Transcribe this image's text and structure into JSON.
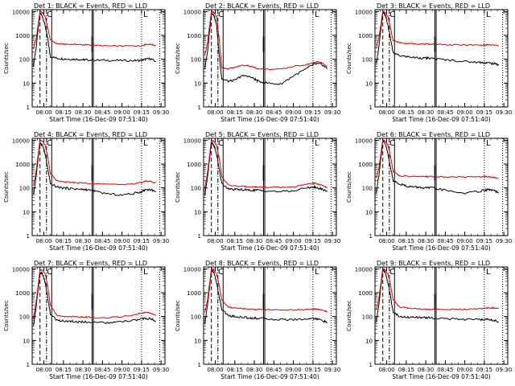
{
  "figure": {
    "colors": {
      "events": "#000000",
      "lld": "#e00000",
      "axis": "#000000",
      "background": "#ffffff"
    }
  },
  "chart_data": [
    {
      "type": "line",
      "title": "Det 1: BLACK = Events, RED = LLD",
      "xlabel": "Start Time (16-Dec-09 07:51:40)",
      "ylabel": "Counts/sec",
      "x_tick_labels": [
        "08:00",
        "08:15",
        "08:30",
        "08:45",
        "09:00",
        "09:15",
        "09:30"
      ],
      "y_tick_labels": [
        "1",
        "10",
        "100",
        "1000",
        "10000"
      ],
      "y_scale": "log",
      "ylim": [
        1,
        12000
      ],
      "corner_labels": [
        "C",
        "L"
      ],
      "x": [
        "07:52",
        "07:54",
        "07:57",
        "07:59",
        "08:01",
        "08:03",
        "08:05",
        "08:10",
        "08:15",
        "08:20",
        "08:25",
        "08:30",
        "08:33",
        "08:40",
        "08:50",
        "09:00",
        "09:10",
        "09:15",
        "09:18",
        "09:22",
        "09:26"
      ],
      "series": [
        {
          "name": "Events",
          "values": [
            55,
            300,
            9000,
            6000,
            2500,
            700,
            130,
            110,
            105,
            100,
            100,
            95,
            95,
            90,
            90,
            88,
            88,
            90,
            100,
            105,
            80
          ]
        },
        {
          "name": "LLD",
          "values": [
            280,
            700,
            10000,
            9000,
            6000,
            2000,
            650,
            450,
            430,
            420,
            420,
            400,
            400,
            380,
            360,
            360,
            360,
            370,
            420,
            420,
            380
          ]
        }
      ]
    },
    {
      "type": "line",
      "title": "Det 2: BLACK = Events, RED = LLD",
      "xlabel": "Start Time (16-Dec-09 07:51:40)",
      "ylabel": "Counts/sec",
      "x_tick_labels": [
        "08:00",
        "08:15",
        "08:30",
        "08:45",
        "09:00",
        "09:15",
        "09:30"
      ],
      "y_tick_labels": [
        "1",
        "10",
        "100",
        "1000",
        "10000"
      ],
      "y_scale": "log",
      "ylim": [
        1,
        12000
      ],
      "corner_labels": [
        "C",
        "L"
      ],
      "x": [
        "07:52",
        "07:54",
        "07:57",
        "07:59",
        "08:01",
        "08:03",
        "08:05",
        "08:10",
        "08:15",
        "08:20",
        "08:25",
        "08:30",
        "08:33",
        "08:40",
        "08:50",
        "09:00",
        "09:10",
        "09:15",
        "09:18",
        "09:22",
        "09:26"
      ],
      "series": [
        {
          "name": "Events",
          "values": [
            40,
            200,
            9000,
            7000,
            2500,
            150,
            15,
            12,
            13,
            20,
            20,
            15,
            12,
            10,
            9,
            20,
            40,
            60,
            65,
            60,
            40
          ]
        },
        {
          "name": "LLD",
          "values": [
            150,
            500,
            10000,
            9000,
            6000,
            700,
            45,
            40,
            45,
            55,
            55,
            45,
            40,
            38,
            38,
            50,
            60,
            70,
            80,
            70,
            50
          ]
        }
      ]
    },
    {
      "type": "line",
      "title": "Det 3: BLACK = Events, RED = LLD",
      "xlabel": "Start Time (16-Dec-09 07:51:40)",
      "ylabel": "Counts/sec",
      "x_tick_labels": [
        "08:00",
        "08:15",
        "08:30",
        "08:45",
        "09:00",
        "09:15",
        "09:30"
      ],
      "y_tick_labels": [
        "1",
        "10",
        "100",
        "1000",
        "10000"
      ],
      "y_scale": "log",
      "ylim": [
        1,
        12000
      ],
      "corner_labels": [
        "C",
        "L"
      ],
      "x": [
        "07:52",
        "07:54",
        "07:57",
        "07:59",
        "08:01",
        "08:03",
        "08:05",
        "08:10",
        "08:15",
        "08:20",
        "08:25",
        "08:30",
        "08:33",
        "08:40",
        "08:50",
        "09:00",
        "09:10",
        "09:15",
        "09:18",
        "09:22",
        "09:26"
      ],
      "series": [
        {
          "name": "Events",
          "values": [
            60,
            350,
            9000,
            7000,
            2500,
            700,
            180,
            140,
            130,
            120,
            115,
            110,
            110,
            100,
            90,
            80,
            75,
            72,
            70,
            65,
            60
          ]
        },
        {
          "name": "LLD",
          "values": [
            300,
            800,
            10000,
            9000,
            6000,
            2000,
            600,
            500,
            460,
            450,
            440,
            430,
            430,
            420,
            400,
            400,
            390,
            390,
            400,
            390,
            370
          ]
        }
      ]
    },
    {
      "type": "line",
      "title": "Det 4: BLACK = Events, RED = LLD",
      "xlabel": "Start Time (16-Dec-09 07:51:40)",
      "ylabel": "Counts/sec",
      "x_tick_labels": [
        "08:00",
        "08:15",
        "08:30",
        "08:45",
        "09:00",
        "09:15",
        "09:30"
      ],
      "y_tick_labels": [
        "1",
        "10",
        "100",
        "1000",
        "10000"
      ],
      "y_scale": "log",
      "ylim": [
        1,
        12000
      ],
      "corner_labels": [
        "C",
        "L"
      ],
      "x": [
        "07:52",
        "07:54",
        "07:57",
        "07:59",
        "08:01",
        "08:03",
        "08:05",
        "08:10",
        "08:15",
        "08:20",
        "08:25",
        "08:30",
        "08:33",
        "08:40",
        "08:50",
        "09:00",
        "09:10",
        "09:15",
        "09:18",
        "09:22",
        "09:26"
      ],
      "series": [
        {
          "name": "Events",
          "values": [
            50,
            300,
            8000,
            6000,
            2500,
            600,
            150,
            110,
            100,
            95,
            90,
            85,
            85,
            70,
            55,
            50,
            60,
            70,
            85,
            85,
            70
          ]
        },
        {
          "name": "LLD",
          "values": [
            120,
            500,
            10000,
            9000,
            6000,
            2000,
            400,
            200,
            180,
            170,
            165,
            160,
            160,
            150,
            140,
            140,
            150,
            170,
            190,
            190,
            160
          ]
        }
      ]
    },
    {
      "type": "line",
      "title": "Det 5: BLACK = Events, RED = LLD",
      "xlabel": "Start Time (16-Dec-09 07:51:40)",
      "ylabel": "Counts/sec",
      "x_tick_labels": [
        "08:00",
        "08:15",
        "08:30",
        "08:45",
        "09:00",
        "09:15",
        "09:30"
      ],
      "y_tick_labels": [
        "1",
        "10",
        "100",
        "1000",
        "10000"
      ],
      "y_scale": "log",
      "ylim": [
        1,
        12000
      ],
      "corner_labels": [
        "C",
        "L"
      ],
      "x": [
        "07:52",
        "07:54",
        "07:57",
        "07:59",
        "08:01",
        "08:03",
        "08:05",
        "08:10",
        "08:15",
        "08:20",
        "08:25",
        "08:30",
        "08:33",
        "08:40",
        "08:50",
        "09:00",
        "09:10",
        "09:15",
        "09:18",
        "09:22",
        "09:26"
      ],
      "series": [
        {
          "name": "Events",
          "values": [
            50,
            300,
            8000,
            6000,
            2500,
            600,
            150,
            90,
            85,
            85,
            80,
            80,
            80,
            75,
            70,
            75,
            100,
            110,
            100,
            90,
            70
          ]
        },
        {
          "name": "LLD",
          "values": [
            100,
            450,
            10000,
            9000,
            6000,
            1800,
            300,
            130,
            120,
            115,
            115,
            110,
            110,
            105,
            105,
            110,
            140,
            160,
            150,
            130,
            100
          ]
        }
      ]
    },
    {
      "type": "line",
      "title": "Det 6: BLACK = Events, RED = LLD",
      "xlabel": "Start Time (16-Dec-09 07:51:40)",
      "ylabel": "Counts/sec",
      "x_tick_labels": [
        "08:00",
        "08:15",
        "08:30",
        "08:45",
        "09:00",
        "09:15",
        "09:30"
      ],
      "y_tick_labels": [
        "1",
        "10",
        "100",
        "1000",
        "10000"
      ],
      "y_scale": "log",
      "ylim": [
        1,
        12000
      ],
      "corner_labels": [
        "C",
        "L"
      ],
      "x": [
        "07:52",
        "07:54",
        "07:57",
        "07:59",
        "08:01",
        "08:03",
        "08:05",
        "08:10",
        "08:15",
        "08:20",
        "08:25",
        "08:30",
        "08:33",
        "08:40",
        "08:50",
        "09:00",
        "09:10",
        "09:15",
        "09:18",
        "09:22",
        "09:26"
      ],
      "series": [
        {
          "name": "Events",
          "values": [
            60,
            350,
            9000,
            7000,
            2500,
            700,
            200,
            150,
            120,
            110,
            105,
            100,
            100,
            90,
            70,
            60,
            70,
            80,
            85,
            80,
            60
          ]
        },
        {
          "name": "LLD",
          "values": [
            250,
            700,
            10000,
            9000,
            6000,
            2000,
            500,
            320,
            310,
            300,
            300,
            300,
            300,
            290,
            290,
            290,
            290,
            300,
            300,
            280,
            250
          ]
        }
      ]
    },
    {
      "type": "line",
      "title": "Det 7: BLACK = Events, RED = LLD",
      "xlabel": "Start Time (16-Dec-09 07:51:40)",
      "ylabel": "Counts/sec",
      "x_tick_labels": [
        "08:00",
        "08:15",
        "08:30",
        "08:45",
        "09:00",
        "09:15",
        "09:30"
      ],
      "y_tick_labels": [
        "1",
        "10",
        "100",
        "1000",
        "10000"
      ],
      "y_scale": "log",
      "ylim": [
        1,
        12000
      ],
      "corner_labels": [
        "C",
        "L"
      ],
      "x": [
        "07:52",
        "07:54",
        "07:57",
        "07:59",
        "08:01",
        "08:03",
        "08:05",
        "08:10",
        "08:15",
        "08:20",
        "08:25",
        "08:30",
        "08:33",
        "08:40",
        "08:50",
        "09:00",
        "09:10",
        "09:15",
        "09:18",
        "09:22",
        "09:26"
      ],
      "series": [
        {
          "name": "Events",
          "values": [
            40,
            250,
            7000,
            6000,
            2500,
            600,
            130,
            70,
            65,
            65,
            60,
            60,
            60,
            55,
            55,
            60,
            70,
            80,
            85,
            80,
            65
          ]
        },
        {
          "name": "LLD",
          "values": [
            80,
            400,
            9000,
            8500,
            6000,
            1800,
            300,
            110,
            100,
            100,
            100,
            95,
            95,
            90,
            90,
            100,
            120,
            140,
            150,
            140,
            110
          ]
        }
      ]
    },
    {
      "type": "line",
      "title": "Det 8: BLACK = Events, RED = LLD",
      "xlabel": "Start Time (16-Dec-09 07:51:40)",
      "ylabel": "Counts/sec",
      "x_tick_labels": [
        "08:00",
        "08:15",
        "08:30",
        "08:45",
        "09:00",
        "09:15",
        "09:30"
      ],
      "y_tick_labels": [
        "1",
        "10",
        "100",
        "1000",
        "10000"
      ],
      "y_scale": "log",
      "ylim": [
        1,
        12000
      ],
      "corner_labels": [
        "C",
        "L"
      ],
      "x": [
        "07:52",
        "07:54",
        "07:57",
        "07:59",
        "08:01",
        "08:03",
        "08:05",
        "08:10",
        "08:15",
        "08:20",
        "08:25",
        "08:30",
        "08:33",
        "08:40",
        "08:50",
        "09:00",
        "09:10",
        "09:15",
        "09:18",
        "09:22",
        "09:26"
      ],
      "series": [
        {
          "name": "Events",
          "values": [
            50,
            300,
            9000,
            7000,
            2500,
            700,
            200,
            110,
            100,
            95,
            90,
            85,
            85,
            80,
            75,
            75,
            80,
            85,
            80,
            70,
            55
          ]
        },
        {
          "name": "LLD",
          "values": [
            150,
            500,
            10000,
            9000,
            6000,
            2000,
            500,
            250,
            230,
            220,
            210,
            200,
            200,
            195,
            190,
            190,
            200,
            210,
            200,
            190,
            160
          ]
        }
      ]
    },
    {
      "type": "line",
      "title": "Det 9: BLACK = Events, RED = LLD",
      "xlabel": "Start Time (16-Dec-09 07:51:40)",
      "ylabel": "Counts/sec",
      "x_tick_labels": [
        "08:00",
        "08:15",
        "08:30",
        "08:45",
        "09:00",
        "09:15",
        "09:30"
      ],
      "y_tick_labels": [
        "1",
        "10",
        "100",
        "1000",
        "10000"
      ],
      "y_scale": "log",
      "ylim": [
        1,
        12000
      ],
      "corner_labels": [
        "C",
        "L"
      ],
      "x": [
        "07:52",
        "07:54",
        "07:57",
        "07:59",
        "08:01",
        "08:03",
        "08:05",
        "08:10",
        "08:15",
        "08:20",
        "08:25",
        "08:30",
        "08:33",
        "08:40",
        "08:50",
        "09:00",
        "09:10",
        "09:15",
        "09:18",
        "09:22",
        "09:26"
      ],
      "series": [
        {
          "name": "Events",
          "values": [
            60,
            350,
            9000,
            7000,
            2500,
            700,
            150,
            100,
            95,
            95,
            90,
            90,
            90,
            85,
            80,
            75,
            75,
            75,
            75,
            70,
            60
          ]
        },
        {
          "name": "LLD",
          "values": [
            200,
            600,
            10000,
            9000,
            6000,
            2000,
            500,
            250,
            230,
            220,
            210,
            200,
            200,
            200,
            200,
            200,
            210,
            220,
            230,
            230,
            220
          ]
        }
      ]
    }
  ]
}
